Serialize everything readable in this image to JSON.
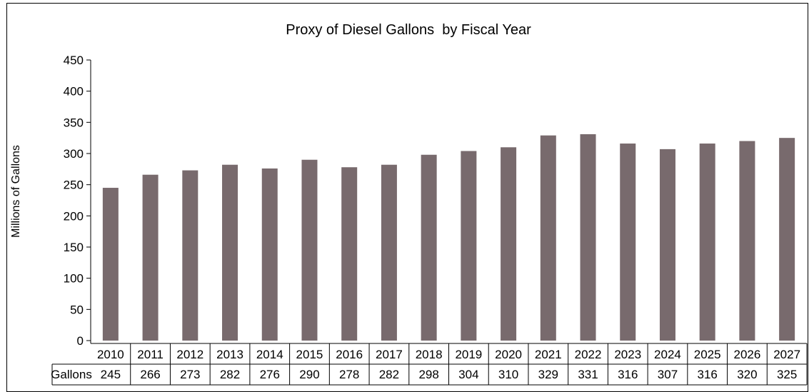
{
  "chart_data": {
    "type": "bar",
    "title": "Proxy of Diesel Gallons  by Fiscal Year",
    "ylabel": "Millions of Gallons",
    "xlabel": "",
    "categories": [
      "2010",
      "2011",
      "2012",
      "2013",
      "2014",
      "2015",
      "2016",
      "2017",
      "2018",
      "2019",
      "2020",
      "2021",
      "2022",
      "2023",
      "2024",
      "2025",
      "2026",
      "2027"
    ],
    "series": [
      {
        "name": "Gallons",
        "values": [
          245,
          266,
          273,
          282,
          276,
          290,
          278,
          282,
          298,
          304,
          310,
          329,
          331,
          316,
          307,
          316,
          320,
          325
        ]
      }
    ],
    "ylim": [
      0,
      450
    ],
    "yticks": [
      0,
      50,
      100,
      150,
      200,
      250,
      300,
      350,
      400,
      450
    ],
    "grid": false,
    "legend": "none",
    "data_table": true,
    "bar_color": "#786a6d"
  }
}
